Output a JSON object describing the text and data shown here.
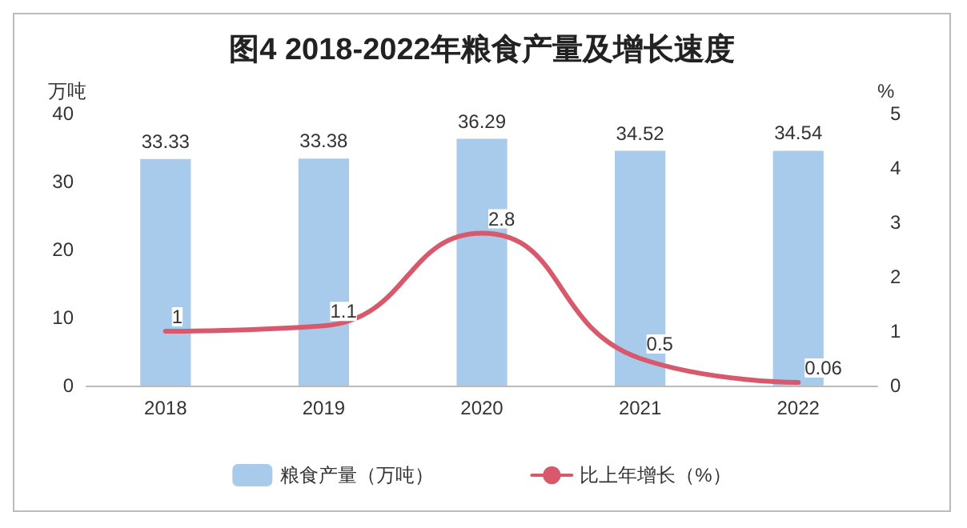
{
  "chart_data": {
    "type": "bar",
    "title": "图4 2018-2022年粮食产量及增长速度",
    "ylabel": "万吨",
    "y2label": "%",
    "categories": [
      "2018",
      "2019",
      "2020",
      "2021",
      "2022"
    ],
    "series": [
      {
        "name": "粮食产量（万吨）",
        "color": "#a9cbeb",
        "values": [
          33.33,
          33.38,
          36.29,
          34.52,
          34.54
        ]
      },
      {
        "name": "比上年增长（%）",
        "type": "line",
        "axis": "y2",
        "color": "#d9596c",
        "values": [
          1,
          1.1,
          2.8,
          0.5,
          0.06
        ]
      }
    ],
    "ylim": [
      0,
      40
    ],
    "yticks": [
      0,
      10,
      20,
      30,
      40
    ],
    "y2lim": [
      0,
      5
    ],
    "y2ticks": [
      0,
      1,
      2,
      3,
      4,
      5
    ],
    "data_labels": true,
    "legend": "bottom",
    "grid": false,
    "marker": "none",
    "line_style": "solid"
  }
}
